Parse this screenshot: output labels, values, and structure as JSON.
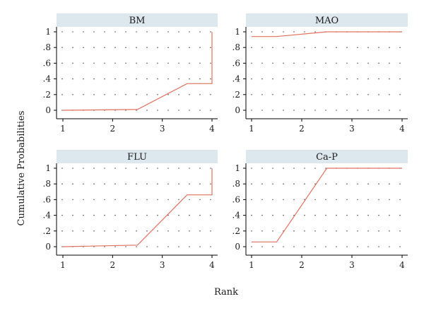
{
  "chart_data": [
    {
      "type": "line",
      "title": "BM",
      "x": [
        1,
        2.5,
        3.5,
        4,
        4
      ],
      "y": [
        0,
        0.01,
        0.34,
        0.34,
        1
      ],
      "xticks": [
        1,
        2,
        3,
        4
      ],
      "yticks": [
        "0",
        ".2",
        ".4",
        ".6",
        ".8",
        "1"
      ],
      "xlim": [
        1,
        4
      ],
      "ylim": [
        0,
        1
      ],
      "grid": true
    },
    {
      "type": "line",
      "title": "MAO",
      "x": [
        1,
        1.5,
        2.5,
        4
      ],
      "y": [
        0.94,
        0.94,
        1,
        1
      ],
      "xticks": [
        1,
        2,
        3,
        4
      ],
      "yticks": [
        "0",
        ".2",
        ".4",
        ".6",
        ".8",
        "1"
      ],
      "xlim": [
        1,
        4
      ],
      "ylim": [
        0,
        1
      ],
      "grid": true
    },
    {
      "type": "line",
      "title": "FLU",
      "x": [
        1,
        2.5,
        3.5,
        4,
        4
      ],
      "y": [
        0,
        0.02,
        0.66,
        0.66,
        1
      ],
      "xticks": [
        1,
        2,
        3,
        4
      ],
      "yticks": [
        "0",
        ".2",
        ".4",
        ".6",
        ".8",
        "1"
      ],
      "xlim": [
        1,
        4
      ],
      "ylim": [
        0,
        1
      ],
      "grid": true
    },
    {
      "type": "line",
      "title": "Ca-P",
      "x": [
        1,
        1.5,
        2.5,
        4
      ],
      "y": [
        0.06,
        0.06,
        1,
        1
      ],
      "xticks": [
        1,
        2,
        3,
        4
      ],
      "yticks": [
        "0",
        ".2",
        ".4",
        ".6",
        ".8",
        "1"
      ],
      "xlim": [
        1,
        4
      ],
      "ylim": [
        0,
        1
      ],
      "grid": true
    }
  ],
  "shared": {
    "xlabel": "Rank",
    "ylabel": "Cumulative Probabilities",
    "line_color": "#e0705f",
    "strip_color": "#dde7ee"
  }
}
